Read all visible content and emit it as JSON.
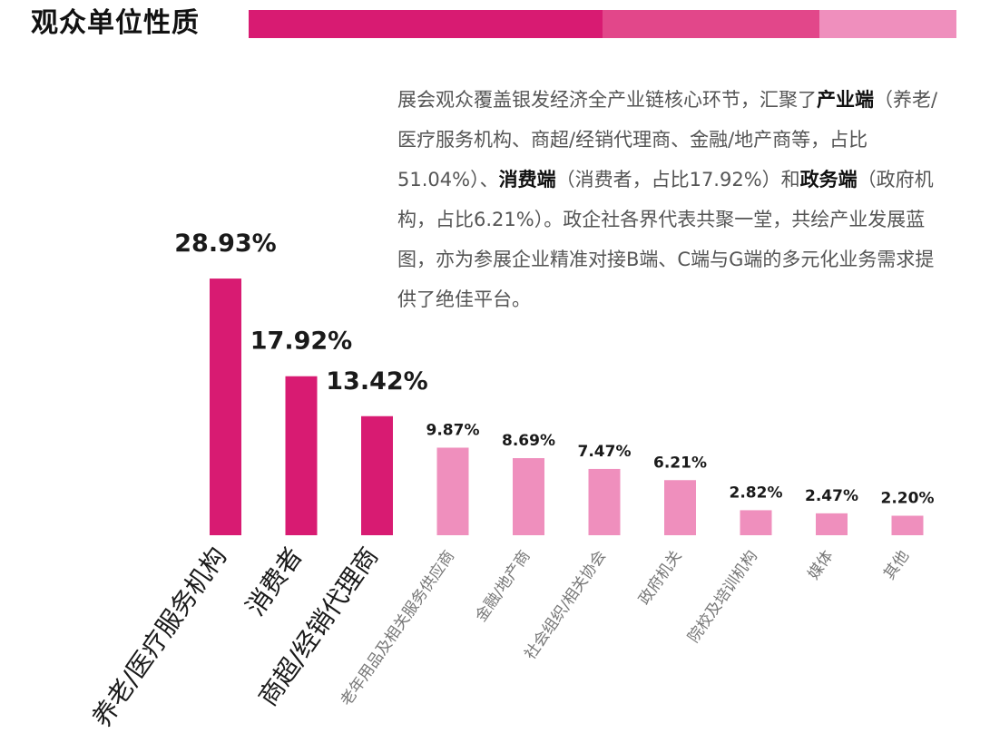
{
  "title": "观众单位性质",
  "colors": {
    "stripe": [
      "#d81b72",
      "#e2478a",
      "#ef8fbd"
    ],
    "bar_major": "#d81b72",
    "bar_minor": "#ef8fbd"
  },
  "description": {
    "p1": "展会观众覆盖银发经济全产业链核心环节，汇聚了",
    "b1": "产业端",
    "p2": "（养老/医疗服务机构、商超/经销代理商、金融/地产商等，占比51.04%）、",
    "b2": "消费端",
    "p3": "（消费者，占比17.92%）和",
    "b3": "政务端",
    "p4": "（政府机构，占比6.21%）。政企社各界代表共聚一堂，共绘产业发展蓝图，亦为参展企业精准对接B端、C端与G端的多元化业务需求提供了绝佳平台。"
  },
  "chart_data": {
    "type": "bar",
    "title": "观众单位性质",
    "xlabel": "",
    "ylabel": "",
    "ylim": [
      0,
      30
    ],
    "unit": "%",
    "categories": [
      "养老/医疗服务机构",
      "消费者",
      "商超/经销代理商",
      "老年用品及相关服务供应商",
      "金融/地产商",
      "社会组织/相关协会",
      "政府机关",
      "院校及培训机构",
      "媒体",
      "其他"
    ],
    "values": [
      28.93,
      17.92,
      13.42,
      9.87,
      8.69,
      7.47,
      6.21,
      2.82,
      2.47,
      2.2
    ],
    "labels": [
      "28.93%",
      "17.92%",
      "13.42%",
      "9.87%",
      "8.69%",
      "7.47%",
      "6.21%",
      "2.82%",
      "2.47%",
      "2.20%"
    ],
    "highlight_top": 3
  }
}
